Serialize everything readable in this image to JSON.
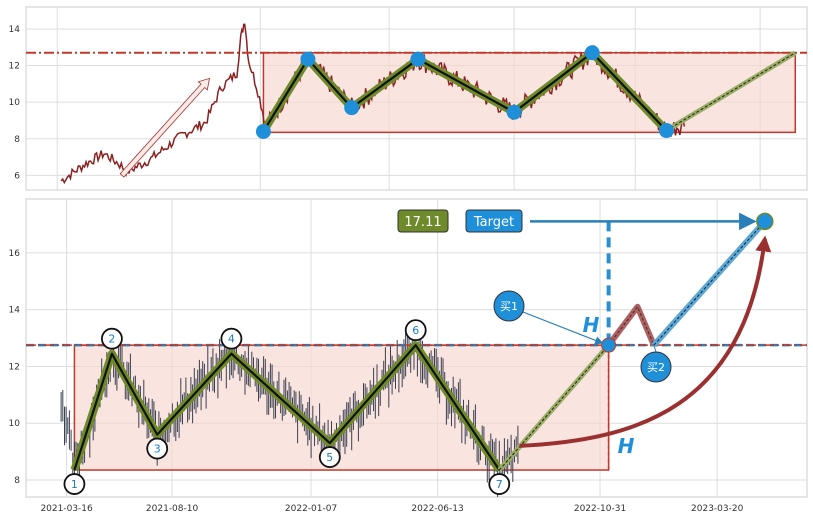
{
  "colors": {
    "price_line": "#8b2020",
    "ohlc": "#3a4050",
    "resistance": "#c0392b",
    "support_box": "#c0392b",
    "box_fill": "#f6d5cf",
    "zigzag_outer": "#6e8a2a",
    "zigzag_inner": "#111111",
    "marker": "#1e8fd8",
    "target_box": "#1e8fd8",
    "value_box": "#6e8a2a",
    "curve_arrow": "#9b3030",
    "blue_line": "#2a7fb8"
  },
  "chart_data": [
    {
      "type": "line",
      "panel": "top",
      "ylim": [
        5.2,
        15.2
      ],
      "yticks": [
        "6",
        "8",
        "10",
        "12",
        "14"
      ],
      "grid": true,
      "resistance_level": 12.7,
      "box": {
        "x0": 0.304,
        "x1": 0.985,
        "y0": 8.35,
        "y1": 12.7
      },
      "zigzag": [
        {
          "x": 0.304,
          "y": 8.4
        },
        {
          "x": 0.361,
          "y": 12.35
        },
        {
          "x": 0.417,
          "y": 9.7
        },
        {
          "x": 0.502,
          "y": 12.35
        },
        {
          "x": 0.625,
          "y": 9.45
        },
        {
          "x": 0.725,
          "y": 12.7
        },
        {
          "x": 0.82,
          "y": 8.45
        }
      ],
      "projection": [
        {
          "x": 0.82,
          "y": 8.45
        },
        {
          "x": 0.985,
          "y": 12.7
        }
      ]
    },
    {
      "type": "ohlc",
      "panel": "bottom",
      "ylim": [
        7.4,
        17.9
      ],
      "yticks": [
        "8",
        "10",
        "12",
        "14",
        "16"
      ],
      "x_tick_labels": [
        "2021-03-16",
        "2021-08-10",
        "2022-01-07",
        "2022-06-13",
        "2022-10-31",
        "2023-03-20"
      ],
      "grid": true,
      "resistance_level": 12.75,
      "box": {
        "x0": 0.062,
        "x1": 0.746,
        "y0": 8.35,
        "y1": 12.75
      },
      "zigzag": [
        {
          "label": "1",
          "x": 0.062,
          "y": 8.35
        },
        {
          "label": "2",
          "x": 0.11,
          "y": 12.45
        },
        {
          "label": "3",
          "x": 0.168,
          "y": 9.6
        },
        {
          "label": "4",
          "x": 0.263,
          "y": 12.45
        },
        {
          "label": "5",
          "x": 0.389,
          "y": 9.3
        },
        {
          "label": "6",
          "x": 0.499,
          "y": 12.75
        },
        {
          "label": "7",
          "x": 0.606,
          "y": 8.35
        }
      ],
      "breakout": {
        "x": 0.746,
        "y": 12.75
      },
      "retest": [
        {
          "x": 0.746,
          "y": 12.75
        },
        {
          "x": 0.783,
          "y": 14.1
        },
        {
          "x": 0.804,
          "y": 12.75
        }
      ],
      "target": {
        "x": 0.946,
        "y": 17.11
      },
      "target_value": "17.11",
      "target_label": "Target",
      "buy1_label": "买1",
      "buy2_label": "买2",
      "height_label": "H"
    }
  ]
}
